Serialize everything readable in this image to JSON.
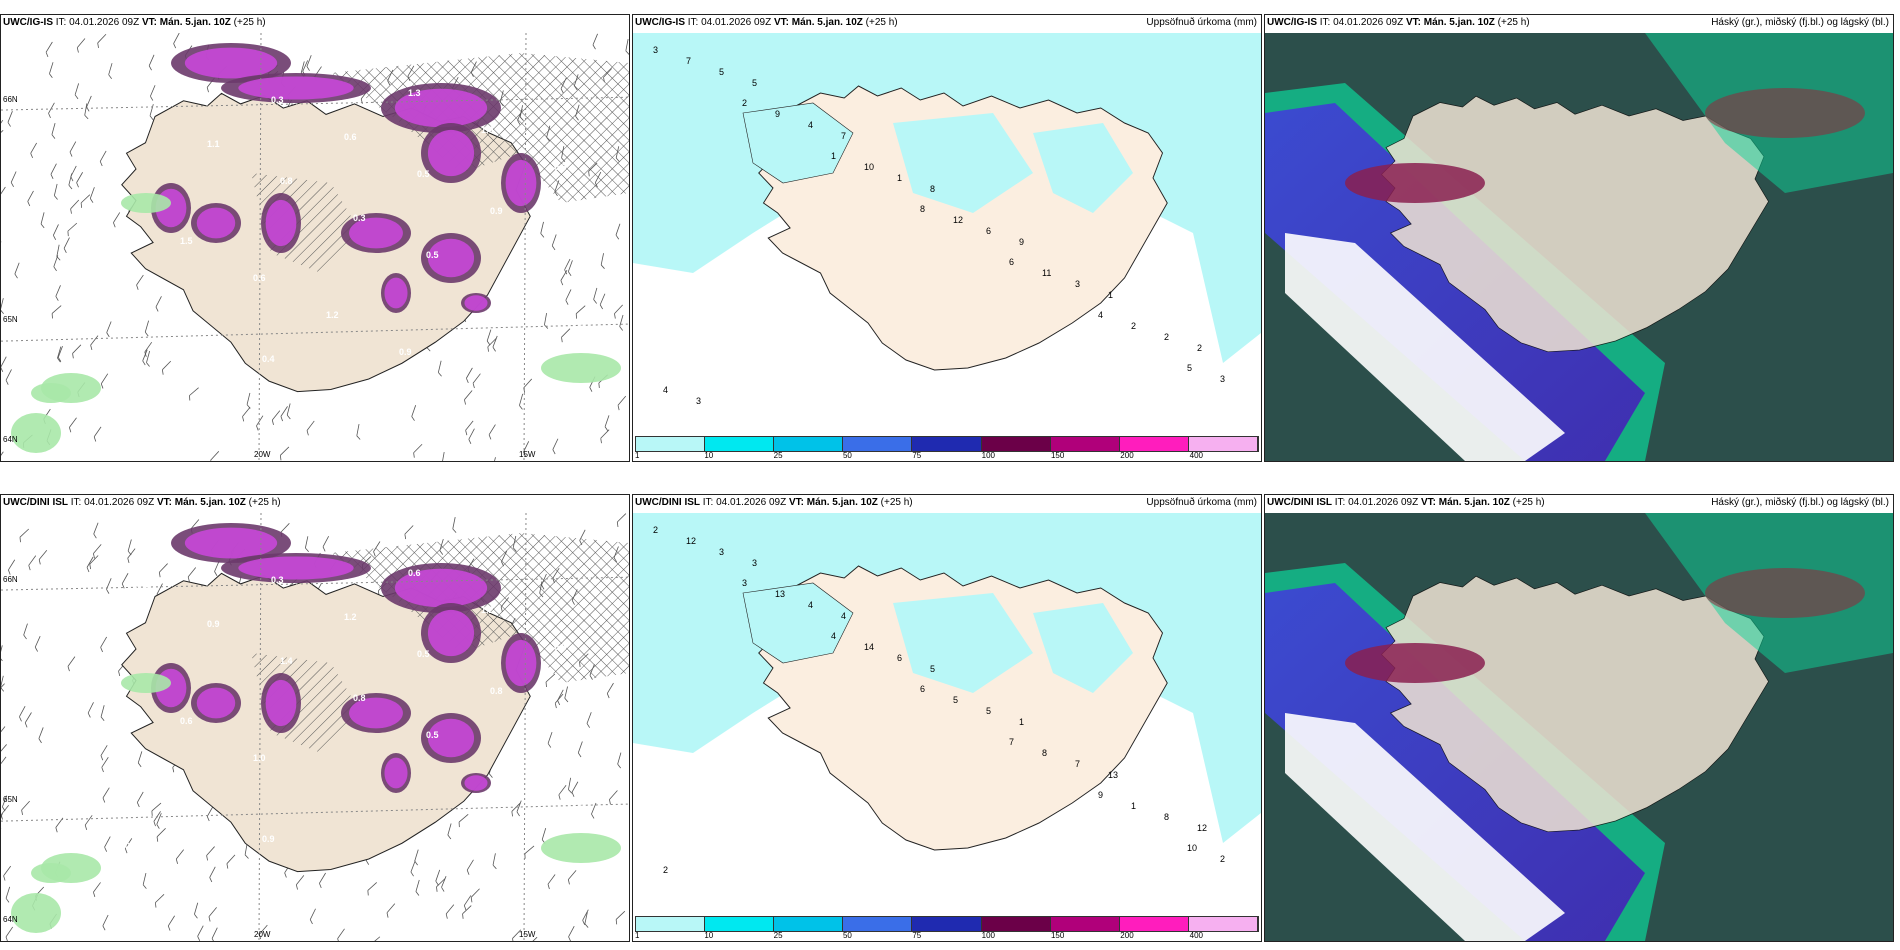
{
  "panels": [
    {
      "model": "UWC/IG-IS",
      "it_label": "IT:",
      "it_value": "04.01.2026 09Z",
      "vt_label": "VT:",
      "vt_value": "Mán. 5.jan. 10Z",
      "lead": "(+25 h)",
      "right": "",
      "type": "wind",
      "axes": {
        "x1": "20W",
        "x2": "15W",
        "y1": "66N",
        "y2": "65N",
        "y3": "64N"
      },
      "numbers": [
        "0.4",
        "0.3",
        "1.1",
        "0.8",
        "0.3",
        "0.5",
        "1.3",
        "0.5",
        "0.7",
        "0.5",
        "0.3",
        "0.6",
        "0.5",
        "0.9",
        "0.3",
        "0.5",
        "0.7",
        "0.4",
        "0.5",
        "1.3",
        "1.0",
        "0.6",
        "1.0",
        "1.5",
        "0.6",
        "1.2",
        "0.9"
      ]
    },
    {
      "model": "UWC/IG-IS",
      "it_label": "IT:",
      "it_value": "04.01.2026 09Z",
      "vt_label": "VT:",
      "vt_value": "Mán. 5.jan. 10Z",
      "lead": "(+25 h)",
      "right": "Uppsöfnuð úrkoma (mm)",
      "type": "precip",
      "numbers": [
        "3",
        "2",
        "1",
        "8",
        "6",
        "4",
        "5",
        "7",
        "9",
        "10",
        "12",
        "11",
        "2",
        "3",
        "5",
        "4",
        "1",
        "6",
        "3",
        "2",
        "4",
        "5",
        "7",
        "8",
        "9",
        "1",
        "2",
        "3"
      ]
    },
    {
      "model": "UWC/IG-IS",
      "it_label": "IT:",
      "it_value": "04.01.2026 09Z",
      "vt_label": "VT:",
      "vt_value": "Mán. 5.jan. 10Z",
      "lead": "(+25 h)",
      "right": "Háský (gr.), miðský (fj.bl.) og lágský (bl.)",
      "type": "cloud"
    },
    {
      "model": "UWC/DINI ISL",
      "it_label": "IT:",
      "it_value": "04.01.2026 09Z",
      "vt_label": "VT:",
      "vt_value": "Mán. 5.jan. 10Z",
      "lead": "(+25 h)",
      "right": "",
      "type": "wind",
      "axes": {
        "x1": "20W",
        "x2": "15W",
        "y1": "66N",
        "y2": "65N",
        "y3": "64N"
      },
      "numbers": [
        "1.1",
        "-1.8",
        "0.9",
        "1.4",
        "0.8",
        "0.5",
        "1.0",
        "0.7",
        "0.4",
        "0.6",
        "0.3",
        "1.2",
        "0.5",
        "0.8",
        "-1.1",
        "0.7",
        "0.4",
        "0.9",
        "1.3",
        "0.6",
        "1.2",
        "0.5",
        "0.7",
        "0.6",
        "1.0"
      ]
    },
    {
      "model": "UWC/DINI ISL",
      "it_label": "IT:",
      "it_value": "04.01.2026 09Z",
      "vt_label": "VT:",
      "vt_value": "Mán. 5.jan. 10Z",
      "lead": "(+25 h)",
      "right": "Uppsöfnuð úrkoma (mm)",
      "type": "precip",
      "numbers": [
        "2",
        "3",
        "4",
        "6",
        "7",
        "9",
        "10",
        "12",
        "13",
        "14",
        "5",
        "8",
        "1",
        "2",
        "3",
        "4",
        "6",
        "5",
        "7",
        "8",
        "2",
        "3",
        "4",
        "5",
        "1",
        "13",
        "12"
      ]
    },
    {
      "model": "UWC/DINI ISL",
      "it_label": "IT:",
      "it_value": "04.01.2026 09Z",
      "vt_label": "VT:",
      "vt_value": "Mán. 5.jan. 10Z",
      "lead": "(+25 h)",
      "right": "Háský (gr.), miðský (fj.bl.) og lágský (bl.)",
      "type": "cloud"
    }
  ],
  "legend": {
    "colors": [
      "#b8f7f7",
      "#00e8f0",
      "#00c2e8",
      "#3a6ee8",
      "#1f2ab0",
      "#6b0048",
      "#b0007a",
      "#ff1dbd",
      "#f6b0f0"
    ],
    "labels": [
      "1",
      "10",
      "25",
      "50",
      "75",
      "100",
      "150",
      "200",
      "400"
    ]
  }
}
